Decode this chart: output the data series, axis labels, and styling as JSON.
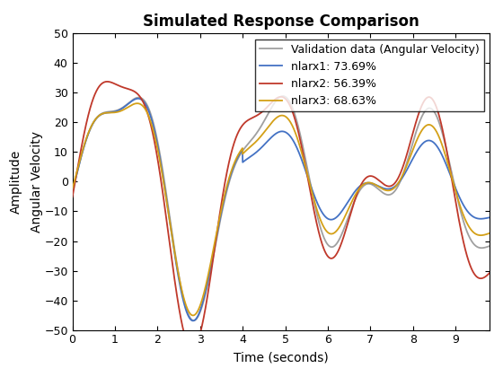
{
  "title": "Simulated Response Comparison",
  "xlabel": "Time (seconds)",
  "ylabel_outer": "Amplitude",
  "ylabel_inner": "Angular Velocity",
  "xlim": [
    0,
    9.8
  ],
  "ylim": [
    -50,
    50
  ],
  "xticks": [
    0,
    1,
    2,
    3,
    4,
    5,
    6,
    7,
    8,
    9
  ],
  "yticks": [
    -50,
    -40,
    -30,
    -20,
    -10,
    0,
    10,
    20,
    30,
    40,
    50
  ],
  "legend_labels": [
    "Validation data (Angular Velocity)",
    "nlarx1: 73.69%",
    "nlarx2: 56.39%",
    "nlarx3: 68.63%"
  ],
  "colors": {
    "validation": "#a0a0a0",
    "nlarx1": "#4472c4",
    "nlarx2": "#c0392b",
    "nlarx3": "#d4a017"
  },
  "linewidths": {
    "validation": 1.3,
    "nlarx1": 1.3,
    "nlarx2": 1.3,
    "nlarx3": 1.3
  },
  "title_fontsize": 12,
  "label_fontsize": 10,
  "legend_fontsize": 9,
  "background_color": "#ffffff"
}
